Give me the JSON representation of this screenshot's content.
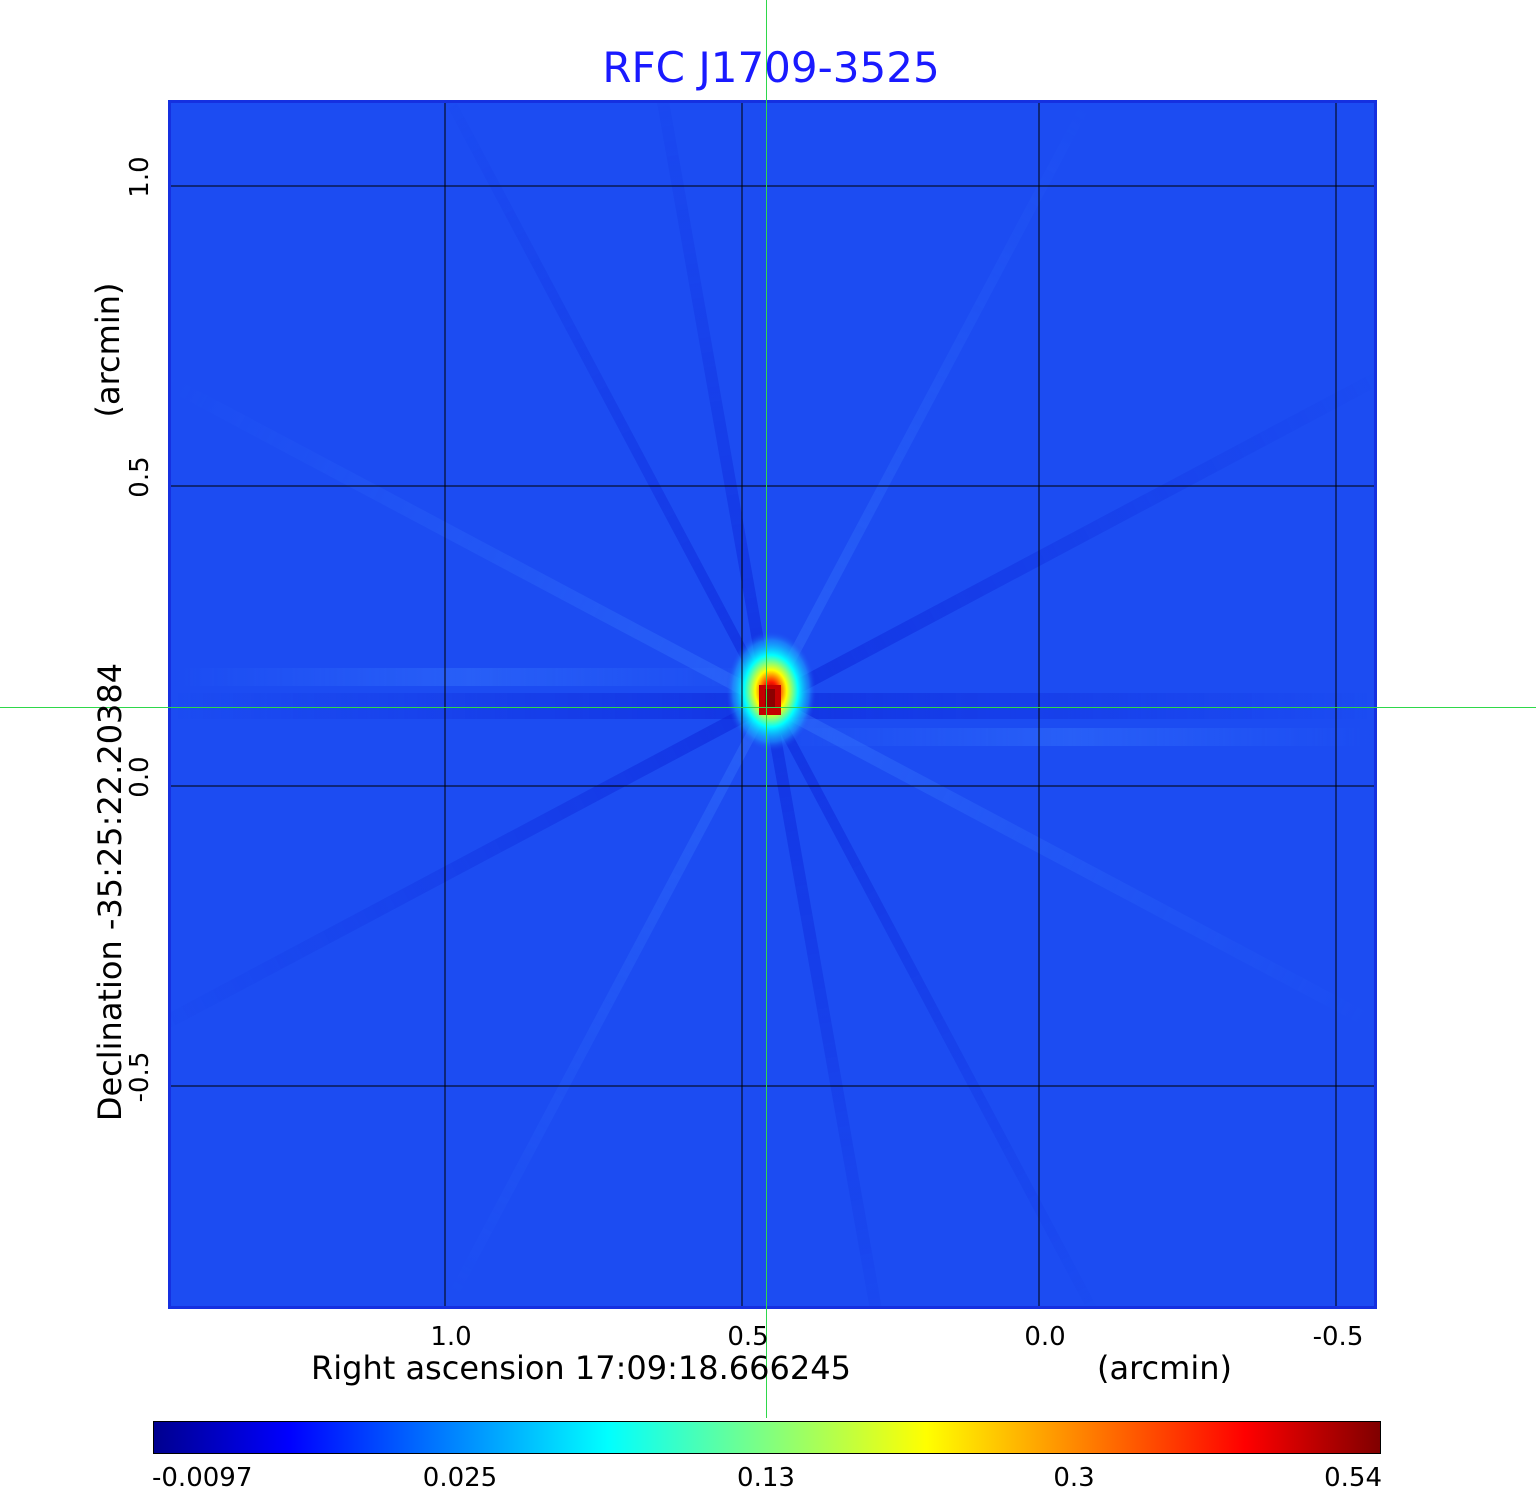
{
  "title": "RFC J1709-3525",
  "x_axis": {
    "label": "Right ascension  17:09:18.666245",
    "unit": "(arcmin)",
    "ticks": [
      "1.0",
      "0.5",
      "0.0",
      "-0.5"
    ]
  },
  "y_axis": {
    "label": "Declination  -35:25:22.20384",
    "unit": "(arcmin)",
    "ticks": [
      "1.0",
      "0.5",
      "0.0",
      "-0.5"
    ]
  },
  "colorbar": {
    "ticks": [
      "-0.0097",
      "0.025",
      "0.13",
      "0.3",
      "0.54"
    ]
  },
  "colors": {
    "title": "#1a1aff",
    "frame": "#1530e0",
    "background_field": "#1c4cf2",
    "crosshair": "#2ed84a",
    "grid": "#000000"
  }
}
